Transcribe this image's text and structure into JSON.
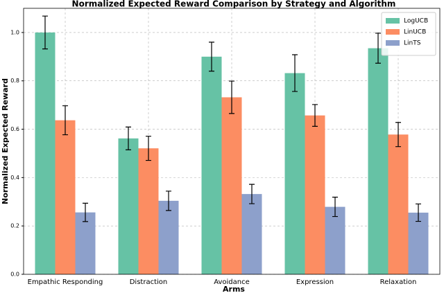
{
  "chart_data": {
    "type": "bar",
    "title": "Normalized Expected Reward Comparison by Strategy and Algorithm",
    "x_label": "Arms",
    "y_label": "Normalized Expected Reward",
    "categories": [
      "Empathic Responding",
      "Distraction",
      "Avoidance",
      "Expression",
      "Relaxation"
    ],
    "series": [
      {
        "name": "LogUCB",
        "color": "#66c2a5",
        "values": [
          1.0,
          0.562,
          0.9,
          0.832,
          0.935
        ],
        "errors": [
          0.068,
          0.047,
          0.06,
          0.076,
          0.062
        ]
      },
      {
        "name": "LinUCB",
        "color": "#fc8d62",
        "values": [
          0.637,
          0.521,
          0.732,
          0.657,
          0.578
        ],
        "errors": [
          0.06,
          0.05,
          0.067,
          0.045,
          0.05
        ]
      },
      {
        "name": "LinTS",
        "color": "#8da0cb",
        "values": [
          0.256,
          0.304,
          0.332,
          0.279,
          0.255
        ],
        "errors": [
          0.038,
          0.04,
          0.04,
          0.04,
          0.036
        ]
      }
    ],
    "ylim": [
      0,
      1.1
    ],
    "yticks": [
      {
        "value": 0,
        "label": "0.0"
      },
      0.2,
      0.4,
      0.6,
      0.8,
      {
        "value": 1,
        "label": "1.0"
      }
    ],
    "grid": true,
    "legend": "upper right"
  }
}
